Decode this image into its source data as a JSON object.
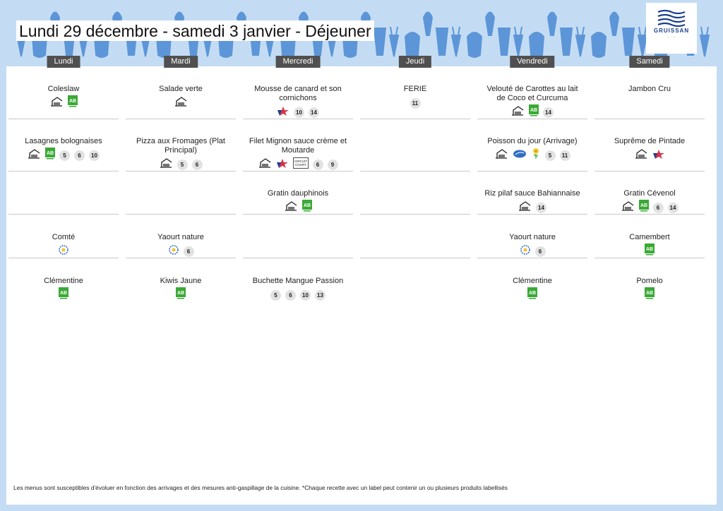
{
  "title": "Lundi 29 décembre - samedi 3 janvier  - Déjeuner",
  "logo": {
    "text": "GRUISSAN"
  },
  "days": [
    {
      "name": "Lundi",
      "rows": [
        {
          "dish": "Coleslaw",
          "icons": [
            "house-icon",
            "organic-icon"
          ],
          "allergens": []
        },
        {
          "dish": "Lasagnes bolognaises",
          "icons": [
            "house-icon",
            "organic-icon"
          ],
          "allergens": [
            "5",
            "6",
            "10"
          ]
        },
        null,
        {
          "dish": "Comté",
          "icons": [
            "aop-icon"
          ],
          "allergens": []
        },
        {
          "dish": "Clémentine",
          "icons": [
            "organic-icon"
          ],
          "allergens": []
        }
      ]
    },
    {
      "name": "Mardi",
      "rows": [
        {
          "dish": "Salade verte",
          "icons": [
            "house-icon"
          ],
          "allergens": []
        },
        {
          "dish": "Pizza aux Fromages  (Plat Principal)",
          "icons": [
            "house-icon"
          ],
          "allergens": [
            "5",
            "6"
          ]
        },
        null,
        {
          "dish": "Yaourt nature",
          "icons": [
            "aop-icon"
          ],
          "allergens": [
            "6"
          ]
        },
        {
          "dish": "Kiwis Jaune",
          "icons": [
            "organic-icon"
          ],
          "allergens": []
        }
      ]
    },
    {
      "name": "Mercredi",
      "rows": [
        {
          "dish": "Mousse de canard et son cornichons",
          "icons": [
            "french-meat-icon"
          ],
          "allergens": [
            "10",
            "14"
          ]
        },
        {
          "dish": "Filet Mignon sauce crème et Moutarde",
          "icons": [
            "house-icon",
            "french-meat-icon",
            "short-circuit-icon"
          ],
          "allergens": [
            "6",
            "9"
          ]
        },
        {
          "dish": "Gratin dauphinois",
          "icons": [
            "house-icon",
            "organic-icon"
          ],
          "allergens": []
        },
        null,
        {
          "dish": "Buchette Mangue Passion",
          "icons": [],
          "allergens": [
            "5",
            "6",
            "10",
            "13"
          ]
        }
      ]
    },
    {
      "name": "Jeudi",
      "rows": [
        {
          "dish": "FERIE",
          "icons": [],
          "allergens": [
            "11"
          ]
        },
        null,
        null,
        null,
        null
      ]
    },
    {
      "name": "Vendredi",
      "rows": [
        {
          "dish": "Velouté de Carottes au lait de Coco et Curcuma",
          "icons": [
            "house-icon",
            "organic-icon"
          ],
          "allergens": [
            "14"
          ]
        },
        {
          "dish": "Poisson du jour (Arrivage)",
          "icons": [
            "house-icon",
            "fish-label-icon",
            "flower-icon"
          ],
          "allergens": [
            "5",
            "11"
          ]
        },
        {
          "dish": "Riz pilaf sauce Bahiannaise",
          "icons": [
            "house-icon"
          ],
          "allergens": [
            "14"
          ]
        },
        {
          "dish": "Yaourt nature",
          "icons": [
            "aop-icon"
          ],
          "allergens": [
            "6"
          ]
        },
        {
          "dish": "Clémentine",
          "icons": [
            "organic-icon"
          ],
          "allergens": []
        }
      ]
    },
    {
      "name": "Samedi",
      "rows": [
        {
          "dish": "Jambon Cru",
          "icons": [],
          "allergens": []
        },
        {
          "dish": "Suprême de Pintade",
          "icons": [
            "house-icon",
            "french-meat-icon"
          ],
          "allergens": []
        },
        {
          "dish": "Gratin Cévenol",
          "icons": [
            "house-icon",
            "organic-icon"
          ],
          "allergens": [
            "6",
            "14"
          ]
        },
        {
          "dish": "Camembert",
          "icons": [
            "organic-icon"
          ],
          "allergens": []
        },
        {
          "dish": "Pomelo",
          "icons": [
            "organic-icon"
          ],
          "allergens": []
        }
      ]
    }
  ],
  "footer": "Les menus sont susceptibles d'évoluer en fonction des arrivages et des mesures anti-gaspillage de la cuisine. *Chaque recette avec un label peut contenir un ou plusieurs produits labellisés",
  "colors": {
    "background": "#c4dcf3",
    "decoration": "#5c96d8",
    "header": "#505050",
    "organic": "#3aa935",
    "badge": "#e2e2e2"
  }
}
